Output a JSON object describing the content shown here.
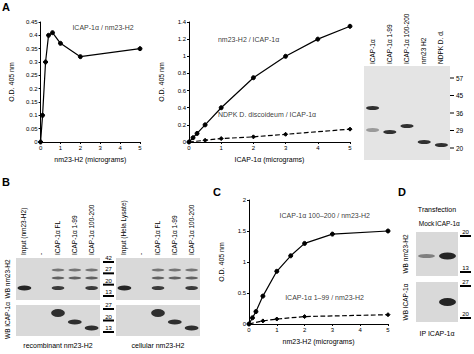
{
  "panel_labels": [
    "A",
    "B",
    "C",
    "D"
  ],
  "chart_data": [
    {
      "type": "line",
      "x_label": "nm23-H2 (micrograms)",
      "y_label": "O.D. 405 nm",
      "xlim": [
        0,
        5
      ],
      "xticks": [
        0,
        1,
        2,
        3,
        4,
        5
      ],
      "ylim": [
        0,
        0.45
      ],
      "yticks": [
        0,
        0.05,
        0.1,
        0.15,
        0.2,
        0.25,
        0.3,
        0.35,
        0.4,
        0.45
      ],
      "grid": false,
      "series": [
        {
          "x": [
            0,
            0.1,
            0.25,
            0.4,
            0.6,
            1,
            2,
            5
          ],
          "values": [
            0,
            0.1,
            0.3,
            0.4,
            0.41,
            0.37,
            0.32,
            0.35
          ],
          "color": "#000000",
          "marker": "circle",
          "line_style": "solid"
        }
      ],
      "annotations": [
        {
          "text": "ICAP-1α / nm23-H2",
          "x": 1.6,
          "y": 0.43
        }
      ]
    },
    {
      "type": "line",
      "x_label": "ICAP-1α (micrograms)",
      "y_label": "O.D. 405 nm",
      "xlim": [
        0,
        5
      ],
      "xticks": [
        0,
        1,
        2,
        3,
        4,
        5
      ],
      "ylim": [
        0,
        1.4
      ],
      "yticks": [
        0,
        0.2,
        0.4,
        0.6,
        0.8,
        1,
        1.2,
        1.4
      ],
      "grid": false,
      "series": [
        {
          "x": [
            0,
            0.125,
            0.25,
            0.5,
            1,
            2,
            3,
            4,
            5
          ],
          "values": [
            0,
            0.05,
            0.1,
            0.2,
            0.4,
            0.75,
            1.0,
            1.2,
            1.35
          ],
          "color": "#000000",
          "marker": "circle",
          "line_style": "solid"
        },
        {
          "x": [
            0,
            0.5,
            1,
            2,
            3,
            5
          ],
          "values": [
            0,
            0.02,
            0.04,
            0.06,
            0.09,
            0.15
          ],
          "color": "#000000",
          "marker": "diamond",
          "line_style": "dashed"
        }
      ],
      "annotations": [
        {
          "text": "nm23-H2 / ICAP-1α",
          "x": 0.9,
          "y": 1.2
        },
        {
          "text": "NDPK D. discoideum / ICAP-1α",
          "x": 0.9,
          "y": 0.32
        }
      ]
    },
    {
      "type": "line",
      "x_label": "nm23-H2 (micrograms)",
      "y_label": "O.D. 405 nm",
      "xlim": [
        0,
        5
      ],
      "xticks": [
        0,
        1,
        2,
        3,
        4,
        5
      ],
      "ylim": [
        0,
        2
      ],
      "yticks": [
        0,
        0.5,
        1,
        1.5,
        2
      ],
      "grid": false,
      "series": [
        {
          "x": [
            0,
            0.125,
            0.25,
            0.5,
            1,
            1.5,
            2,
            3,
            5
          ],
          "values": [
            0,
            0.1,
            0.2,
            0.45,
            0.85,
            1.1,
            1.3,
            1.45,
            1.5
          ],
          "color": "#000000",
          "marker": "circle",
          "line_style": "solid"
        },
        {
          "x": [
            0,
            0.5,
            1,
            2,
            5
          ],
          "values": [
            0,
            0.05,
            0.08,
            0.12,
            0.15
          ],
          "color": "#000000",
          "marker": "diamond",
          "line_style": "dashed"
        }
      ],
      "annotations": [
        {
          "text": "ICAP-1α 100–200 / nm23-H2",
          "x": 1.1,
          "y": 1.75
        },
        {
          "text": "ICAP-1α 1–99 / nm23-H2",
          "x": 1.3,
          "y": 0.42
        }
      ]
    }
  ],
  "gel": {
    "lanes": [
      "ICAP-1α",
      "ICAP-1α 1-99",
      "ICAP-1α 100-200",
      "nm23 H2",
      "NDPK D. d."
    ],
    "markers": [
      57,
      45,
      36,
      29,
      20
    ]
  },
  "blot_B": {
    "recombinant": {
      "lanes": [
        "Input (nm23-H2)",
        "-",
        "ICAP-1α FL",
        "ICAP-1α 1-99",
        "ICAP-1α 100-200"
      ],
      "caption": "recombinant nm23-H2"
    },
    "cellular": {
      "lanes": [
        "Input (Hela Lysate)",
        "-",
        "ICAP-1α FL",
        "ICAP-1α 1-99",
        "ICAP-1α 100-200"
      ],
      "caption": "cellular nm23-H2"
    },
    "rows": [
      "WB nm23-H2",
      "WB ICAP-1α"
    ],
    "markers_top": [
      42,
      27,
      20,
      13
    ],
    "markers_bottom": [
      27,
      20,
      13
    ]
  },
  "blot_D": {
    "title": "Transfection",
    "lanes": [
      "Mock",
      "ICAP-1α"
    ],
    "rows": [
      "WB nm23-H2",
      "WB ICAP-1α"
    ],
    "markers_top": [
      20,
      13
    ],
    "markers_bottom": [
      27,
      20
    ],
    "caption": "IP ICAP-1α"
  }
}
